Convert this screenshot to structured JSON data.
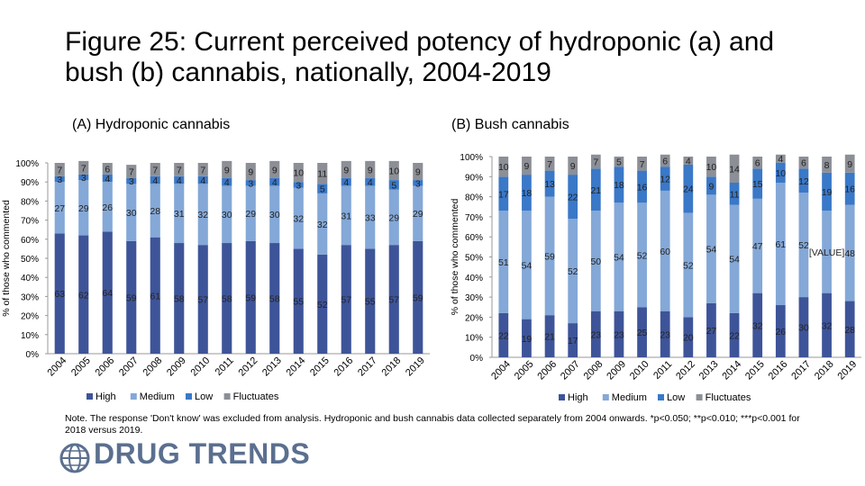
{
  "title": "Figure 25: Current perceived potency of hydroponic (a) and bush (b) cannabis, nationally, 2004-2019",
  "note": "Note. The response 'Don't know' was excluded from analysis. Hydroponic and bush cannabis data collected separately from 2004 onwards. *p<0.050; **p<0.010; ***p<0.001 for 2018 versus 2019.",
  "logo": {
    "text": "DRUG TRENDS"
  },
  "colors": {
    "High": "#3e5499",
    "Medium": "#84a8d7",
    "Low": "#3a78c8",
    "Fluctuates": "#8c8f96"
  },
  "chart_data": [
    {
      "type": "bar",
      "stacked": true,
      "title": "(A) Hydroponic cannabis",
      "ylabel": "% of those who commented",
      "ylim": [
        0,
        100
      ],
      "yticks": [
        "0%",
        "10%",
        "20%",
        "30%",
        "40%",
        "50%",
        "60%",
        "70%",
        "80%",
        "90%",
        "100%"
      ],
      "categories": [
        "2004",
        "2005",
        "2006",
        "2007",
        "2008",
        "2009",
        "2010",
        "2011",
        "2012",
        "2013",
        "2014",
        "2015",
        "2016",
        "2017",
        "2018",
        "2019"
      ],
      "series": [
        {
          "name": "High",
          "values": [
            63,
            62,
            64,
            59,
            61,
            58,
            57,
            58,
            59,
            58,
            55,
            52,
            57,
            55,
            57,
            59
          ]
        },
        {
          "name": "Medium",
          "values": [
            27,
            29,
            26,
            30,
            28,
            31,
            32,
            30,
            29,
            30,
            32,
            32,
            31,
            33,
            29,
            29
          ]
        },
        {
          "name": "Low",
          "values": [
            3,
            3,
            4,
            3,
            4,
            4,
            4,
            4,
            3,
            4,
            3,
            5,
            4,
            4,
            5,
            3
          ]
        },
        {
          "name": "Fluctuates",
          "values": [
            7,
            7,
            6,
            7,
            7,
            7,
            7,
            9,
            9,
            9,
            10,
            11,
            9,
            9,
            10,
            9
          ]
        }
      ]
    },
    {
      "type": "bar",
      "stacked": true,
      "title": "(B) Bush cannabis",
      "ylabel": "% of those who commented",
      "ylim": [
        0,
        100
      ],
      "yticks": [
        "0%",
        "10%",
        "20%",
        "30%",
        "40%",
        "50%",
        "60%",
        "70%",
        "80%",
        "90%",
        "100%"
      ],
      "categories": [
        "2004",
        "2005",
        "2006",
        "2007",
        "2008",
        "2009",
        "2010",
        "2011",
        "2012",
        "2013",
        "2014",
        "2015",
        "2016",
        "2017",
        "2018",
        "2019"
      ],
      "series": [
        {
          "name": "High",
          "values": [
            22,
            19,
            21,
            17,
            23,
            23,
            25,
            23,
            20,
            27,
            22,
            32,
            26,
            30,
            32,
            28
          ]
        },
        {
          "name": "Medium",
          "values": [
            51,
            54,
            59,
            52,
            50,
            54,
            52,
            60,
            52,
            54,
            54,
            47,
            61,
            52,
            "[VALUE]",
            48
          ]
        },
        {
          "name": "Low",
          "values": [
            17,
            18,
            13,
            22,
            21,
            18,
            16,
            12,
            24,
            9,
            11,
            15,
            10,
            12,
            19,
            16
          ]
        },
        {
          "name": "Fluctuates",
          "values": [
            10,
            9,
            7,
            9,
            7,
            5,
            7,
            6,
            4,
            10,
            14,
            6,
            4,
            6,
            8,
            9
          ]
        }
      ]
    }
  ]
}
